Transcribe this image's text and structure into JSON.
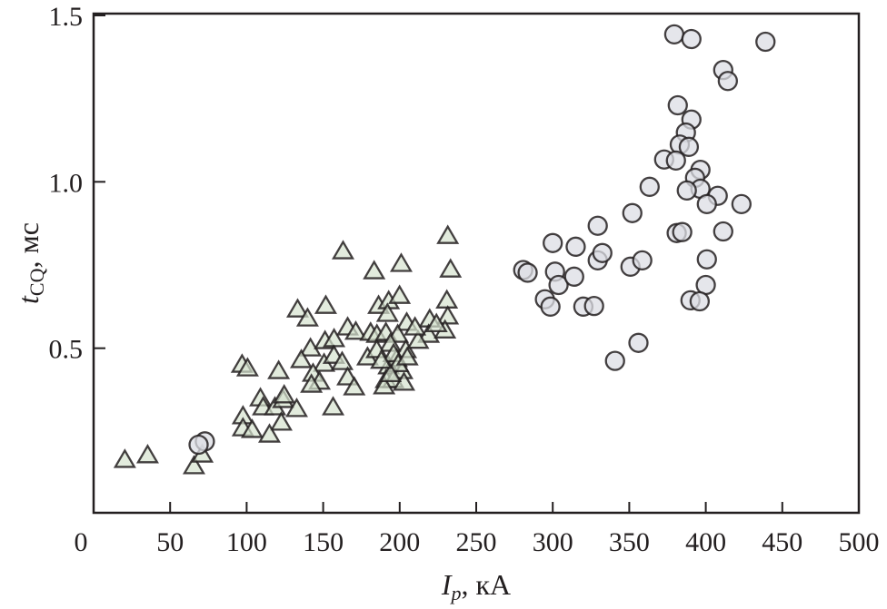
{
  "chart_data": {
    "type": "scatter",
    "xlabel": {
      "main": "I",
      "sub": "p",
      "unit": ", кА"
    },
    "ylabel": {
      "main": "t",
      "sub": "CQ",
      "unit": ", мс"
    },
    "xlim": [
      0,
      500
    ],
    "ylim": [
      0,
      1.5
    ],
    "xticks": [
      0,
      50,
      100,
      150,
      200,
      250,
      300,
      350,
      400,
      450,
      500
    ],
    "xtick_labels": [
      "0",
      "50",
      "100",
      "150",
      "200",
      "250",
      "300",
      "350",
      "400",
      "450",
      "500"
    ],
    "yticks": [
      0.5,
      1.0,
      1.5
    ],
    "ytick_labels": [
      "0.5",
      "1.0",
      "1.5"
    ],
    "grid": false,
    "series": [
      {
        "marker": "triangle",
        "color": "#d6e3cf",
        "edge_color": "#231f20",
        "points": [
          [
            20.4,
            0.162
          ],
          [
            35.3,
            0.176
          ],
          [
            65.6,
            0.143
          ],
          [
            71,
            0.178
          ],
          [
            163,
            0.789
          ],
          [
            183.3,
            0.729
          ],
          [
            201,
            0.751
          ],
          [
            231.4,
            0.835
          ],
          [
            233.2,
            0.734
          ],
          [
            133.3,
            0.614
          ],
          [
            139.8,
            0.587
          ],
          [
            151.7,
            0.625
          ],
          [
            186.2,
            0.625
          ],
          [
            192.8,
            0.639
          ],
          [
            199.9,
            0.655
          ],
          [
            192,
            0.601
          ],
          [
            230.8,
            0.641
          ],
          [
            231.4,
            0.593
          ],
          [
            219.6,
            0.584
          ],
          [
            218.9,
            0.538
          ],
          [
            229.6,
            0.551
          ],
          [
            204.6,
            0.574
          ],
          [
            166,
            0.56
          ],
          [
            171.3,
            0.547
          ],
          [
            181,
            0.544
          ],
          [
            185.1,
            0.538
          ],
          [
            191,
            0.544
          ],
          [
            198.7,
            0.538
          ],
          [
            193.9,
            0.511
          ],
          [
            179,
            0.47
          ],
          [
            185,
            0.492
          ],
          [
            204,
            0.492
          ],
          [
            192.8,
            0.443
          ],
          [
            198,
            0.465
          ],
          [
            201.6,
            0.429
          ],
          [
            191,
            0.402
          ],
          [
            195.7,
            0.402
          ],
          [
            202.8,
            0.394
          ],
          [
            189.8,
            0.383
          ],
          [
            141.7,
            0.497
          ],
          [
            151.2,
            0.519
          ],
          [
            157.1,
            0.525
          ],
          [
            135.7,
            0.462
          ],
          [
            150.6,
            0.451
          ],
          [
            157,
            0.475
          ],
          [
            162.4,
            0.456
          ],
          [
            143.4,
            0.421
          ],
          [
            147.6,
            0.397
          ],
          [
            142.3,
            0.388
          ],
          [
            166,
            0.41
          ],
          [
            170.3,
            0.38
          ],
          [
            156.5,
            0.32
          ],
          [
            97,
            0.448
          ],
          [
            100.6,
            0.437
          ],
          [
            120.9,
            0.429
          ],
          [
            109,
            0.347
          ],
          [
            110.8,
            0.32
          ],
          [
            118.5,
            0.32
          ],
          [
            123.9,
            0.342
          ],
          [
            124.5,
            0.356
          ],
          [
            132.7,
            0.315
          ],
          [
            122.6,
            0.274
          ],
          [
            97.6,
            0.293
          ],
          [
            97.6,
            0.257
          ],
          [
            103.6,
            0.252
          ],
          [
            114.9,
            0.238
          ],
          [
            196,
            0.48
          ],
          [
            199,
            0.45
          ],
          [
            194,
            0.42
          ],
          [
            188,
            0.46
          ],
          [
            205,
            0.47
          ],
          [
            212,
            0.52
          ],
          [
            224,
            0.57
          ],
          [
            210,
            0.56
          ]
        ]
      },
      {
        "marker": "circle",
        "color": "#dcdee4",
        "edge_color": "#231f20",
        "points": [
          [
            72.7,
            0.22
          ],
          [
            68.6,
            0.21
          ],
          [
            280.7,
            0.735
          ],
          [
            283.6,
            0.727
          ],
          [
            300,
            0.816
          ],
          [
            301.5,
            0.73
          ],
          [
            303.8,
            0.69
          ],
          [
            294.9,
            0.647
          ],
          [
            298.5,
            0.625
          ],
          [
            315,
            0.805
          ],
          [
            314,
            0.715
          ],
          [
            320,
            0.625
          ],
          [
            327,
            0.627
          ],
          [
            329.4,
            0.868
          ],
          [
            329.4,
            0.764
          ],
          [
            332.4,
            0.786
          ],
          [
            352,
            0.906
          ],
          [
            350.8,
            0.745
          ],
          [
            358.5,
            0.764
          ],
          [
            340.7,
            0.462
          ],
          [
            356,
            0.516
          ],
          [
            379.4,
            1.443
          ],
          [
            390.6,
            1.429
          ],
          [
            439,
            1.421
          ],
          [
            411.4,
            1.336
          ],
          [
            414.4,
            1.303
          ],
          [
            381.7,
            1.23
          ],
          [
            390.6,
            1.187
          ],
          [
            387,
            1.148
          ],
          [
            383,
            1.112
          ],
          [
            388.9,
            1.105
          ],
          [
            372.8,
            1.067
          ],
          [
            380.5,
            1.064
          ],
          [
            396.5,
            1.036
          ],
          [
            393,
            1.012
          ],
          [
            396.5,
            0.979
          ],
          [
            387.6,
            0.974
          ],
          [
            407.8,
            0.958
          ],
          [
            400.7,
            0.933
          ],
          [
            363.3,
            0.985
          ],
          [
            423.3,
            0.933
          ],
          [
            381,
            0.846
          ],
          [
            384.6,
            0.849
          ],
          [
            411.4,
            0.851
          ],
          [
            400.7,
            0.767
          ],
          [
            400,
            0.69
          ],
          [
            390,
            0.644
          ],
          [
            396,
            0.641
          ]
        ]
      }
    ]
  }
}
